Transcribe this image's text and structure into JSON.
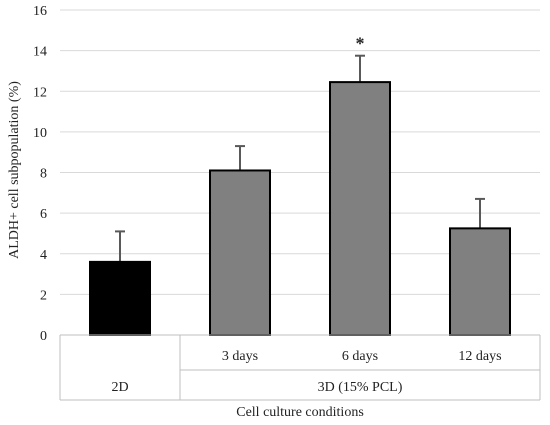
{
  "chart_data": {
    "type": "bar",
    "ylabel": "ALDH+ cell subpopulation (%)",
    "xlabel": "Cell culture conditions",
    "ylim": [
      0,
      16
    ],
    "yticks": [
      0,
      2,
      4,
      6,
      8,
      10,
      12,
      14,
      16
    ],
    "grid": true,
    "groups": [
      {
        "label": "2D",
        "span": 1
      },
      {
        "label": "3D (15% PCL)",
        "span": 3
      }
    ],
    "categories": [
      "",
      "3 days",
      "6 days",
      "12 days"
    ],
    "values": [
      3.6,
      8.1,
      12.45,
      5.25
    ],
    "errors": [
      1.5,
      1.2,
      1.3,
      1.45
    ],
    "colors": [
      "#000000",
      "#808080",
      "#808080",
      "#808080"
    ],
    "annotations": [
      "",
      "",
      "*",
      ""
    ]
  }
}
